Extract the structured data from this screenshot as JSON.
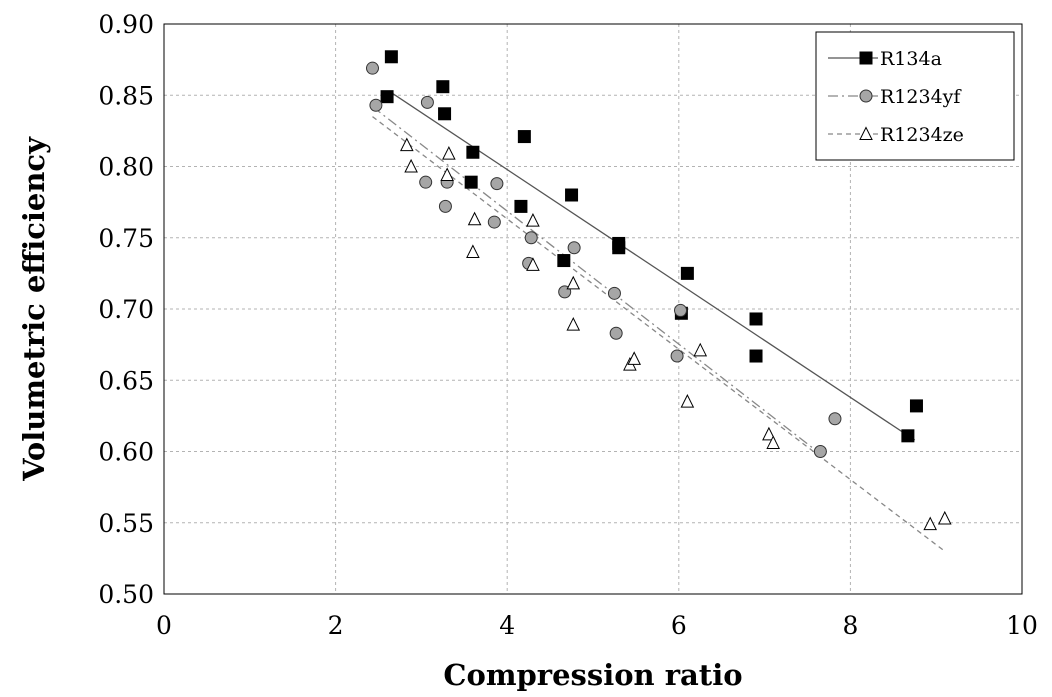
{
  "chart_data": {
    "type": "scatter",
    "xlabel": "Compression ratio",
    "ylabel": "Volumetric efficiency",
    "xlim": [
      0,
      10
    ],
    "ylim": [
      0.5,
      0.9
    ],
    "xticks": [
      0,
      2,
      4,
      6,
      8,
      10
    ],
    "xtick_labels": [
      "0",
      "2",
      "4",
      "6",
      "8",
      "10"
    ],
    "yticks": [
      0.5,
      0.55,
      0.6,
      0.65,
      0.7,
      0.75,
      0.8,
      0.85,
      0.9
    ],
    "ytick_labels": [
      "0.50",
      "0.55",
      "0.60",
      "0.65",
      "0.70",
      "0.75",
      "0.80",
      "0.85",
      "0.90"
    ],
    "grid": true,
    "legend_position": "top-right",
    "series": [
      {
        "name": "R134a",
        "marker": "square",
        "marker_color": "#000000",
        "line_style": "solid",
        "line_color": "#555555",
        "points": [
          [
            2.65,
            0.877
          ],
          [
            2.6,
            0.849
          ],
          [
            3.25,
            0.856
          ],
          [
            3.27,
            0.837
          ],
          [
            3.6,
            0.81
          ],
          [
            3.58,
            0.789
          ],
          [
            4.2,
            0.821
          ],
          [
            4.16,
            0.772
          ],
          [
            4.75,
            0.78
          ],
          [
            4.66,
            0.734
          ],
          [
            5.3,
            0.743
          ],
          [
            5.3,
            0.746
          ],
          [
            6.1,
            0.725
          ],
          [
            6.03,
            0.697
          ],
          [
            6.9,
            0.693
          ],
          [
            6.9,
            0.667
          ],
          [
            8.67,
            0.611
          ],
          [
            8.77,
            0.632
          ]
        ],
        "trend": [
          [
            2.62,
            0.853
          ],
          [
            8.75,
            0.608
          ]
        ]
      },
      {
        "name": "R1234yf",
        "marker": "circle",
        "marker_color": "#a6a6a6",
        "line_style": "dash-dot",
        "line_color": "#888888",
        "points": [
          [
            2.43,
            0.869
          ],
          [
            2.47,
            0.843
          ],
          [
            3.07,
            0.845
          ],
          [
            3.05,
            0.789
          ],
          [
            3.3,
            0.789
          ],
          [
            3.28,
            0.772
          ],
          [
            3.88,
            0.788
          ],
          [
            3.85,
            0.761
          ],
          [
            4.28,
            0.75
          ],
          [
            4.25,
            0.732
          ],
          [
            4.78,
            0.743
          ],
          [
            4.67,
            0.712
          ],
          [
            5.25,
            0.711
          ],
          [
            5.27,
            0.683
          ],
          [
            6.02,
            0.699
          ],
          [
            5.98,
            0.667
          ],
          [
            7.65,
            0.6
          ],
          [
            7.82,
            0.623
          ]
        ],
        "trend": [
          [
            2.43,
            0.842
          ],
          [
            7.7,
            0.596
          ]
        ]
      },
      {
        "name": "R1234ze",
        "marker": "triangle",
        "marker_color": "#ffffff",
        "line_style": "dashed",
        "line_color": "#888888",
        "points": [
          [
            2.83,
            0.815
          ],
          [
            2.88,
            0.8
          ],
          [
            3.32,
            0.809
          ],
          [
            3.3,
            0.794
          ],
          [
            3.62,
            0.763
          ],
          [
            3.6,
            0.74
          ],
          [
            4.3,
            0.762
          ],
          [
            4.3,
            0.731
          ],
          [
            4.77,
            0.718
          ],
          [
            4.77,
            0.689
          ],
          [
            5.43,
            0.661
          ],
          [
            5.48,
            0.665
          ],
          [
            6.25,
            0.671
          ],
          [
            6.1,
            0.635
          ],
          [
            7.05,
            0.612
          ],
          [
            7.1,
            0.606
          ],
          [
            8.93,
            0.549
          ],
          [
            9.1,
            0.553
          ]
        ],
        "trend": [
          [
            2.43,
            0.835
          ],
          [
            9.1,
            0.53
          ]
        ]
      }
    ]
  }
}
